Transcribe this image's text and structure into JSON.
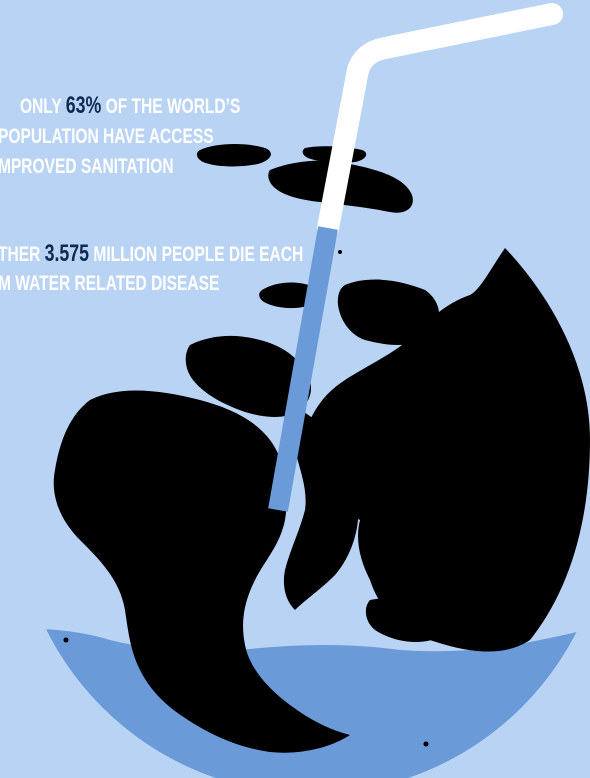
{
  "colors": {
    "background": "#b9d3f4",
    "water": "#6a9bd8",
    "land": "#000000",
    "straw": "#ffffff",
    "highlight_text": "#0f2a52",
    "body_text": "#ffffff"
  },
  "stat1": {
    "line1_prefix": "ONLY ",
    "highlight": "63%",
    "line1_suffix": " OF THE WORLD’S",
    "line2": "POPULATION HAVE ACCESS",
    "line3": "MPROVED SANITATION"
  },
  "stat2": {
    "line1_prefix": "THER ",
    "highlight": "3.575",
    "line1_suffix": " MILLION PEOPLE DIE EACH",
    "line2": "M WATER RELATED DISEASE"
  },
  "illustration": {
    "globe": "globe-in-glass",
    "straw": "drinking-straw"
  }
}
